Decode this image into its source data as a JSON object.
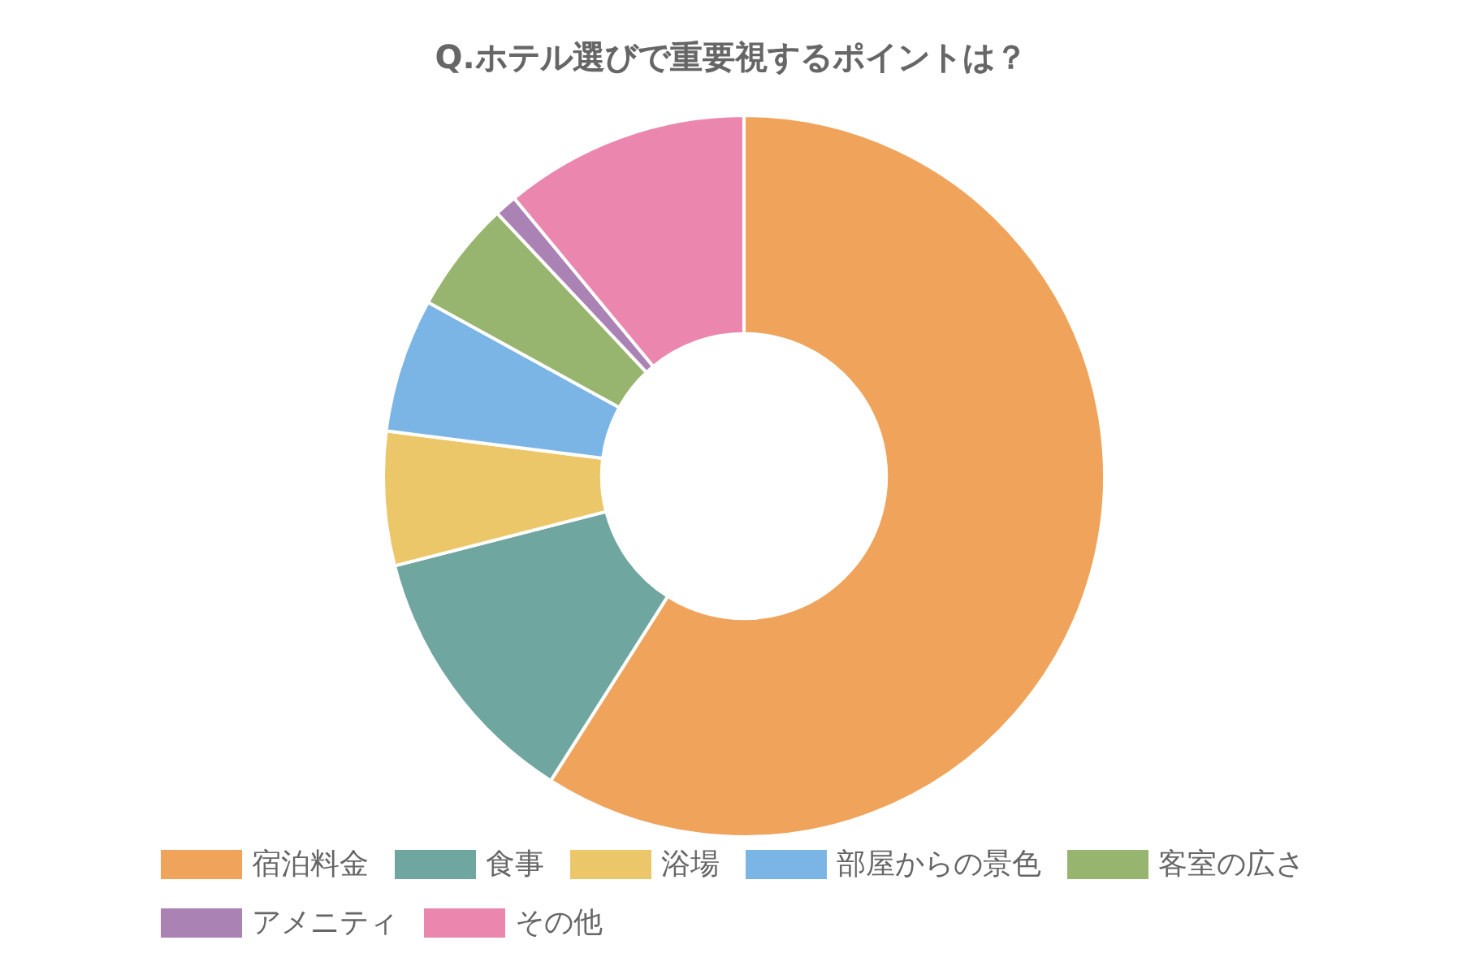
{
  "chart_data": {
    "type": "donut",
    "title": "Q.ホテル選びで重要視するポイントは？",
    "categories": [
      "宿泊料金",
      "食事",
      "浴場",
      "部屋からの景色",
      "客室の広さ",
      "アメニティ",
      "その他"
    ],
    "values": [
      59,
      12,
      6,
      6,
      5,
      1,
      11
    ],
    "colors": [
      "#f0a35a",
      "#70a6a0",
      "#ecc76a",
      "#7ab5e6",
      "#97b56f",
      "#ab82b4",
      "#eb86ae"
    ],
    "legend": "bottom"
  }
}
